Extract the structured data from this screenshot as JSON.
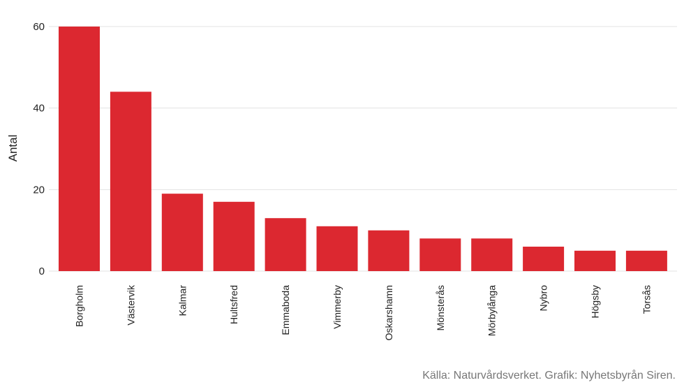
{
  "chart_data": {
    "type": "bar",
    "categories": [
      "Borgholm",
      "Västervik",
      "Kalmar",
      "Hultsfred",
      "Emmaboda",
      "Vimmerby",
      "Oskarshamn",
      "Mönsterås",
      "Mörbylånga",
      "Nybro",
      "Högsby",
      "Torsås"
    ],
    "values": [
      60,
      44,
      19,
      17,
      13,
      11,
      10,
      8,
      8,
      6,
      5,
      5
    ],
    "title": "",
    "xlabel": "",
    "ylabel": "Antal",
    "ylim": [
      0,
      60
    ],
    "yticks": [
      0,
      20,
      40,
      60
    ],
    "grid": true,
    "bar_color": "#dc2830",
    "grid_color": "#e3e3e3"
  },
  "source": "Källa: Naturvårdsverket. Grafik: Nyhetsbyrån Siren."
}
